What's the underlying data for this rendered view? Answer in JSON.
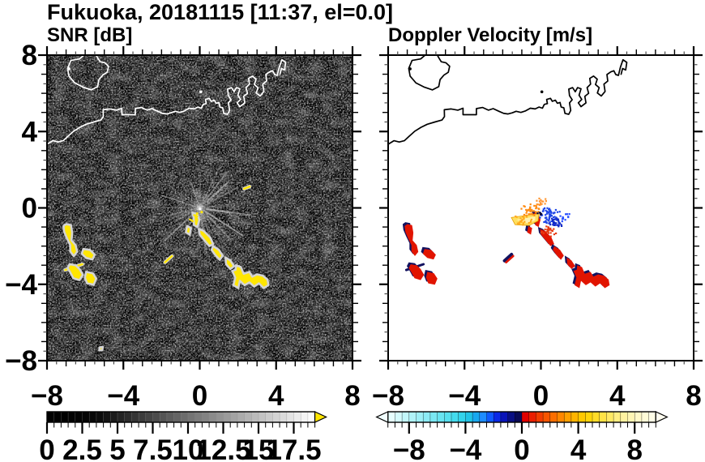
{
  "title": "Fukuoka, 20181115 [11:37, el=0.0]",
  "panels": {
    "snr": {
      "title": "SNR [dB]"
    },
    "velocity": {
      "title": "Doppler Velocity [m/s]"
    }
  },
  "chart_data": {
    "type": "heatmap",
    "subtype": "radar_ppi_pair",
    "site": "Fukuoka",
    "date": "20181115",
    "time": "11:37",
    "elevation_deg": 0.0,
    "axes": {
      "xlim": [
        -8,
        8
      ],
      "ylim": [
        -8,
        8
      ],
      "minor_tick_step": 0.5,
      "unit_tick_step": 1,
      "x_ticks": [
        {
          "v": -8,
          "t": "−8"
        },
        {
          "v": -4,
          "t": "−4"
        },
        {
          "v": 0,
          "t": "0"
        },
        {
          "v": 4,
          "t": "4"
        },
        {
          "v": 8,
          "t": "8"
        }
      ],
      "y_ticks": [
        {
          "v": 8,
          "t": "8"
        },
        {
          "v": 4,
          "t": "4"
        },
        {
          "v": 0,
          "t": "0"
        },
        {
          "v": -4,
          "t": "−4"
        },
        {
          "v": -8,
          "t": "−8"
        }
      ],
      "grid": false
    },
    "colors": {
      "panel_bg_snr": "#000000",
      "panel_bg_vel": "#ffffff",
      "coast_snr": "#ffffff",
      "coast_vel": "#000000",
      "echo_snr": "#ffe600",
      "echo_halo": "#d4d4d4",
      "vel_pos": "#e11400",
      "vel_neg": "#12125f",
      "frame": "#000000"
    },
    "snr_colorbar": {
      "min": 0,
      "max": 19,
      "step": 0.5,
      "ticks": [
        {
          "v": 0,
          "t": "0"
        },
        {
          "v": 2.5,
          "t": "2.5"
        },
        {
          "v": 5,
          "t": "5"
        },
        {
          "v": 7.5,
          "t": "7.5"
        },
        {
          "v": 10,
          "t": "10"
        },
        {
          "v": 12.5,
          "t": "12.5"
        },
        {
          "v": 15,
          "t": "15"
        },
        {
          "v": 17.5,
          "t": "17.5"
        }
      ],
      "overflow_right": "#ffe600",
      "seg_stroke": "rgba(140,140,140,0.55)",
      "colors": [
        "#000000",
        "#000000",
        "#010101",
        "#020202",
        "#030303",
        "#050505",
        "#080808",
        "#0c0c0c",
        "#141414",
        "#1c1c1c",
        "#242424",
        "#2c2c2c",
        "#343434",
        "#3c3c3c",
        "#444444",
        "#4c4c4c",
        "#545454",
        "#5c5c5c",
        "#646464",
        "#6c6c6c",
        "#747474",
        "#7c7c7c",
        "#838383",
        "#8b8b8b",
        "#939393",
        "#9b9b9b",
        "#a3a3a3",
        "#ababab",
        "#b3b3b3",
        "#bbbbbb",
        "#c3c3c3",
        "#cbcbcb",
        "#d3d3d3",
        "#dbdbdb",
        "#e3e3e3",
        "#ebebeb",
        "#f3f3f3",
        "#fbfbfb"
      ]
    },
    "vel_colorbar": {
      "min": -9.5,
      "max": 9.5,
      "step": 0.5,
      "ticks": [
        {
          "v": -8,
          "t": "−8"
        },
        {
          "v": -4,
          "t": "−4"
        },
        {
          "v": 0,
          "t": "0"
        },
        {
          "v": 4,
          "t": "4"
        },
        {
          "v": 8,
          "t": "8"
        }
      ],
      "overflow_left": "#f2ffff",
      "overflow_right": "#fffdf0",
      "seg_stroke": "rgba(0,0,0,0.65)",
      "colors": [
        "#e6ffff",
        "#d4fbfd",
        "#c2f7fb",
        "#b0f3f9",
        "#9eeff7",
        "#8cebf5",
        "#7ae7f3",
        "#68e3f1",
        "#56dfef",
        "#44dbed",
        "#32d2ea",
        "#20c3e6",
        "#18a8ef",
        "#1e8cff",
        "#0f5aff",
        "#0a28e6",
        "#0a14b9",
        "#0a0f82",
        "#0a0a55",
        "#e10000",
        "#ea1e00",
        "#f23c00",
        "#f75500",
        "#fb6e00",
        "#ff8700",
        "#ffa000",
        "#ffb400",
        "#ffc800",
        "#ffd40a",
        "#ffdc28",
        "#ffe346",
        "#ffe964",
        "#ffee82",
        "#fff2a0",
        "#fff5b4",
        "#fff8c8",
        "#fffbd7",
        "#fffde6"
      ]
    },
    "coastline": {
      "island": [
        [
          -6.0,
          8.05
        ],
        [
          -6.3,
          7.8
        ],
        [
          -6.75,
          7.72
        ],
        [
          -6.92,
          7.3
        ],
        [
          -6.85,
          6.9
        ],
        [
          -6.55,
          6.55
        ],
        [
          -6.1,
          6.32
        ],
        [
          -5.68,
          6.18
        ],
        [
          -5.35,
          6.35
        ],
        [
          -5.28,
          6.72
        ],
        [
          -5.08,
          6.95
        ],
        [
          -4.85,
          7.1
        ],
        [
          -4.78,
          7.42
        ],
        [
          -4.98,
          7.6
        ],
        [
          -5.22,
          7.65
        ],
        [
          -5.36,
          7.88
        ],
        [
          -5.45,
          8.05
        ]
      ],
      "main": [
        [
          -8.05,
          3.3
        ],
        [
          -7.7,
          3.52
        ],
        [
          -7.42,
          3.45
        ],
        [
          -7.15,
          3.52
        ],
        [
          -6.9,
          3.75
        ],
        [
          -6.6,
          4.02
        ],
        [
          -6.28,
          4.22
        ],
        [
          -5.95,
          4.38
        ],
        [
          -5.55,
          4.5
        ],
        [
          -5.18,
          4.6
        ],
        [
          -5.05,
          4.78
        ],
        [
          -5.06,
          5.14
        ],
        [
          -4.7,
          5.18
        ],
        [
          -4.35,
          5.12
        ],
        [
          -4.08,
          5.22
        ],
        [
          -4.08,
          4.88
        ],
        [
          -3.38,
          4.88
        ],
        [
          -3.38,
          5.2
        ],
        [
          -3.05,
          5.26
        ],
        [
          -2.75,
          5.12
        ],
        [
          -2.5,
          5.2
        ],
        [
          -2.2,
          5.06
        ],
        [
          -1.95,
          4.95
        ],
        [
          -1.72,
          4.92
        ],
        [
          -1.5,
          4.98
        ],
        [
          -1.3,
          5.06
        ],
        [
          -1.05,
          5.0
        ],
        [
          -0.8,
          5.08
        ],
        [
          -0.55,
          5.22
        ],
        [
          -0.3,
          5.18
        ],
        [
          -0.1,
          5.28
        ],
        [
          0.08,
          5.22
        ],
        [
          0.18,
          5.42
        ],
        [
          0.34,
          5.46
        ],
        [
          0.3,
          5.68
        ],
        [
          0.5,
          5.74
        ],
        [
          0.6,
          5.58
        ],
        [
          0.76,
          5.64
        ],
        [
          0.86,
          5.48
        ],
        [
          1.0,
          5.52
        ],
        [
          1.06,
          5.28
        ],
        [
          1.2,
          5.24
        ],
        [
          1.26,
          4.95
        ],
        [
          1.46,
          4.9
        ],
        [
          1.56,
          5.1
        ],
        [
          1.5,
          5.5
        ],
        [
          1.64,
          5.66
        ],
        [
          1.5,
          5.88
        ],
        [
          1.46,
          6.22
        ],
        [
          1.66,
          6.3
        ],
        [
          1.8,
          6.08
        ],
        [
          1.92,
          6.3
        ],
        [
          2.1,
          6.24
        ],
        [
          2.0,
          5.9
        ],
        [
          2.14,
          5.68
        ],
        [
          1.96,
          5.5
        ],
        [
          2.1,
          5.3
        ],
        [
          2.36,
          5.5
        ],
        [
          2.3,
          5.84
        ],
        [
          2.5,
          6.0
        ],
        [
          2.42,
          6.3
        ],
        [
          2.6,
          6.48
        ],
        [
          2.56,
          6.78
        ],
        [
          2.76,
          6.9
        ],
        [
          2.95,
          6.74
        ],
        [
          2.86,
          6.46
        ],
        [
          3.05,
          6.3
        ],
        [
          2.96,
          6.02
        ],
        [
          3.16,
          5.86
        ],
        [
          3.36,
          6.1
        ],
        [
          3.3,
          6.48
        ],
        [
          3.5,
          6.64
        ],
        [
          3.46,
          6.98
        ],
        [
          3.66,
          7.12
        ],
        [
          3.82,
          7.18
        ],
        [
          3.92,
          6.98
        ],
        [
          4.06,
          6.94
        ],
        [
          4.16,
          7.35
        ],
        [
          4.3,
          7.76
        ],
        [
          4.5,
          7.62
        ],
        [
          4.44,
          7.22
        ],
        [
          4.28,
          7.3
        ],
        [
          4.2,
          7.0
        ]
      ],
      "islets": [
        [
          -6.85,
          7.28
        ],
        [
          0.05,
          6.08
        ]
      ]
    },
    "echoes": [
      {
        "name": "west-snake",
        "kind": "poly",
        "pts": [
          [
            -7.0,
            -0.85
          ],
          [
            -6.75,
            -0.9
          ],
          [
            -6.68,
            -1.3
          ],
          [
            -6.72,
            -1.7
          ],
          [
            -6.5,
            -1.95
          ],
          [
            -6.42,
            -2.3
          ],
          [
            -6.6,
            -2.52
          ],
          [
            -6.78,
            -2.28
          ],
          [
            -6.78,
            -1.95
          ],
          [
            -6.95,
            -1.6
          ],
          [
            -7.1,
            -1.25
          ],
          [
            -7.14,
            -0.95
          ]
        ]
      },
      {
        "name": "west-blob",
        "kind": "poly",
        "pts": [
          [
            -6.1,
            -2.15
          ],
          [
            -5.75,
            -2.2
          ],
          [
            -5.5,
            -2.45
          ],
          [
            -5.62,
            -2.7
          ],
          [
            -5.95,
            -2.62
          ],
          [
            -6.18,
            -2.4
          ]
        ]
      },
      {
        "name": "west-streak",
        "kind": "line",
        "vel": "navy",
        "pts": [
          [
            -7.05,
            -3.25
          ],
          [
            -6.15,
            -2.95
          ]
        ]
      },
      {
        "name": "west-lower-blob-1",
        "kind": "poly",
        "pts": [
          [
            -6.82,
            -2.95
          ],
          [
            -6.5,
            -3.0
          ],
          [
            -6.3,
            -3.2
          ],
          [
            -6.12,
            -3.5
          ],
          [
            -6.3,
            -3.78
          ],
          [
            -6.62,
            -3.68
          ],
          [
            -6.78,
            -3.38
          ],
          [
            -6.92,
            -3.15
          ]
        ]
      },
      {
        "name": "west-lower-blob-2",
        "kind": "poly",
        "pts": [
          [
            -5.95,
            -3.35
          ],
          [
            -5.6,
            -3.42
          ],
          [
            -5.42,
            -3.7
          ],
          [
            -5.55,
            -4.02
          ],
          [
            -5.9,
            -3.95
          ],
          [
            -6.02,
            -3.65
          ]
        ]
      },
      {
        "name": "center-streak",
        "kind": "poly",
        "pts": [
          [
            -0.38,
            -0.25
          ],
          [
            -0.12,
            -0.32
          ],
          [
            -0.02,
            -0.62
          ],
          [
            -0.12,
            -1.0
          ],
          [
            -0.3,
            -0.9
          ],
          [
            -0.32,
            -0.5
          ]
        ]
      },
      {
        "name": "center-small",
        "kind": "poly",
        "pts": [
          [
            -0.66,
            -0.95
          ],
          [
            -0.46,
            -1.05
          ],
          [
            -0.52,
            -1.4
          ],
          [
            -0.72,
            -1.28
          ]
        ]
      },
      {
        "name": "trail-1",
        "kind": "poly",
        "pts": [
          [
            -0.05,
            -1.1
          ],
          [
            0.2,
            -1.2
          ],
          [
            0.55,
            -1.55
          ],
          [
            0.7,
            -1.9
          ],
          [
            0.5,
            -2.0
          ],
          [
            0.25,
            -1.7
          ],
          [
            0.0,
            -1.4
          ]
        ]
      },
      {
        "name": "trail-2",
        "kind": "poly",
        "pts": [
          [
            0.7,
            -2.0
          ],
          [
            1.0,
            -2.2
          ],
          [
            1.2,
            -2.5
          ],
          [
            1.05,
            -2.72
          ],
          [
            0.8,
            -2.45
          ],
          [
            0.62,
            -2.2
          ]
        ]
      },
      {
        "name": "trail-3",
        "kind": "poly",
        "pts": [
          [
            1.35,
            -2.6
          ],
          [
            1.6,
            -2.75
          ],
          [
            1.8,
            -3.05
          ],
          [
            1.6,
            -3.2
          ],
          [
            1.38,
            -2.95
          ]
        ]
      },
      {
        "name": "trail-cluster",
        "kind": "poly",
        "pts": [
          [
            1.9,
            -3.0
          ],
          [
            2.15,
            -3.1
          ],
          [
            2.3,
            -3.45
          ],
          [
            2.6,
            -3.35
          ],
          [
            2.75,
            -3.6
          ],
          [
            3.0,
            -3.48
          ],
          [
            3.3,
            -3.55
          ],
          [
            3.55,
            -3.75
          ],
          [
            3.6,
            -4.05
          ],
          [
            3.35,
            -4.2
          ],
          [
            3.1,
            -3.95
          ],
          [
            2.85,
            -4.12
          ],
          [
            2.6,
            -3.9
          ],
          [
            2.35,
            -4.05
          ],
          [
            2.1,
            -3.82
          ],
          [
            2.02,
            -4.2
          ],
          [
            1.76,
            -4.05
          ],
          [
            1.86,
            -3.65
          ],
          [
            1.7,
            -3.3
          ],
          [
            1.88,
            -3.24
          ]
        ]
      },
      {
        "name": "mid-streak",
        "kind": "line",
        "pts": [
          [
            -1.82,
            -2.85
          ],
          [
            -1.45,
            -2.52
          ]
        ]
      },
      {
        "name": "ne-dash",
        "kind": "line",
        "panels": "snr",
        "pts": [
          [
            2.32,
            1.0
          ],
          [
            2.62,
            1.12
          ]
        ]
      },
      {
        "name": "south-dot",
        "kind": "poly",
        "panels": "snr",
        "pts": [
          [
            -5.25,
            -7.3
          ],
          [
            -5.08,
            -7.28
          ],
          [
            -5.1,
            -7.45
          ],
          [
            -5.26,
            -7.46
          ]
        ]
      }
    ],
    "vel_center": {
      "fan": [
        [
          -0.1,
          -0.3
        ],
        [
          -1.55,
          -0.5
        ],
        [
          -1.35,
          -0.88
        ],
        [
          -0.62,
          -0.92
        ],
        [
          -0.15,
          -0.68
        ]
      ],
      "fan_color": "#ffdf5f",
      "fan_inner": [
        [
          -0.3,
          -0.45
        ],
        [
          -1.3,
          -0.62
        ],
        [
          -0.7,
          -0.8
        ],
        [
          -0.3,
          -0.65
        ]
      ],
      "fan_inner_color": "#fff3b4",
      "clusters": [
        {
          "cx": -0.5,
          "cy": -0.05,
          "rx": 0.55,
          "ry": 0.45,
          "n": 38,
          "color": "#ff8c14"
        },
        {
          "cx": -0.95,
          "cy": -0.68,
          "rx": 0.55,
          "ry": 0.28,
          "n": 24,
          "color": "#ffaa1e"
        },
        {
          "cx": 0.45,
          "cy": -0.35,
          "rx": 0.55,
          "ry": 0.55,
          "n": 55,
          "color": "#1e46e6"
        },
        {
          "cx": 0.75,
          "cy": -0.8,
          "rx": 0.45,
          "ry": 0.4,
          "n": 28,
          "color": "#0f28c8"
        },
        {
          "cx": 0.35,
          "cy": -1.25,
          "rx": 0.5,
          "ry": 0.35,
          "n": 26,
          "color": "#e63c14"
        },
        {
          "cx": 0.05,
          "cy": 0.35,
          "rx": 0.5,
          "ry": 0.3,
          "n": 14,
          "color": "#ff9632"
        },
        {
          "cx": 1.2,
          "cy": -0.5,
          "rx": 0.4,
          "ry": 0.3,
          "n": 12,
          "color": "#2850ff"
        },
        {
          "cx": -0.05,
          "cy": -0.32,
          "rx": 0.15,
          "ry": 0.1,
          "n": 6,
          "color": "#0a0a3c"
        }
      ]
    },
    "snr_center": {
      "center": [
        0,
        0
      ],
      "ray_count": 64,
      "dots": [
        [
          0.02,
          -0.06
        ],
        [
          -0.14,
          -0.3
        ],
        [
          0.1,
          -0.22
        ]
      ],
      "dashes": [
        [
          [
            -0.3,
            -0.38
          ],
          [
            -0.12,
            -0.44
          ]
        ],
        [
          [
            -0.52,
            -0.6
          ],
          [
            -0.36,
            -0.7
          ]
        ]
      ]
    }
  }
}
